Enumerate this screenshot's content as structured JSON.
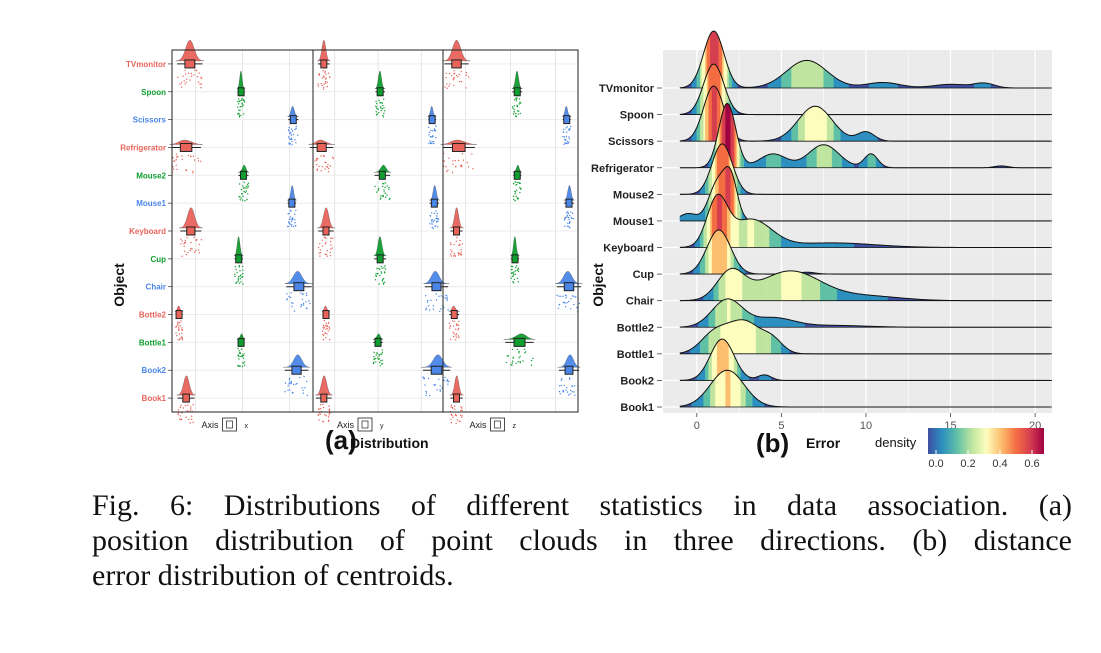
{
  "caption": {
    "lines": [
      "Fig. 6: Distributions of different statistics in data association. (a)",
      "position distribution of point clouds in three directions. (b) distance",
      "error distribution of centroids."
    ]
  },
  "chart_data": [
    {
      "type": "raincloud",
      "panel_label": "(a)",
      "xlabel": "Distribution",
      "ylabel": "Object",
      "grid": true,
      "facets": [
        {
          "title": "Axis",
          "axis": "x"
        },
        {
          "title": "Axis",
          "axis": "y"
        },
        {
          "title": "Axis",
          "axis": "z"
        }
      ],
      "categories": [
        "TVmonitor",
        "Spoon",
        "Scissors",
        "Refrigerator",
        "Mouse2",
        "Mouse1",
        "Keyboard",
        "Cup",
        "Chair",
        "Bottle2",
        "Bottle1",
        "Book2",
        "Book1"
      ],
      "category_colors": [
        "#e8645b",
        "#0e9e2e",
        "#4a86e8",
        "#e8645b",
        "#0e9e2e",
        "#4a86e8",
        "#e8645b",
        "#0e9e2e",
        "#4a86e8",
        "#e8645b",
        "#0e9e2e",
        "#4a86e8",
        "#e8645b"
      ],
      "column_index": [
        0,
        1,
        2,
        0,
        1,
        2,
        0,
        1,
        2,
        0,
        1,
        2,
        0
      ],
      "medians": {
        "x": [
          0.38,
          0.47,
          0.58,
          0.3,
          0.52,
          0.55,
          0.4,
          0.42,
          0.7,
          0.15,
          0.47,
          0.65,
          0.3
        ],
        "y": [
          0.25,
          0.55,
          0.75,
          0.2,
          0.6,
          0.8,
          0.3,
          0.55,
          0.85,
          0.3,
          0.5,
          0.85,
          0.25
        ],
        "z": [
          0.3,
          0.65,
          0.75,
          0.35,
          0.65,
          0.8,
          0.3,
          0.6,
          0.8,
          0.25,
          0.7,
          0.8,
          0.3
        ]
      },
      "spread": {
        "x": [
          0.3,
          0.05,
          0.12,
          0.35,
          0.12,
          0.1,
          0.25,
          0.1,
          0.3,
          0.08,
          0.08,
          0.28,
          0.2
        ],
        "y": [
          0.15,
          0.12,
          0.1,
          0.3,
          0.2,
          0.12,
          0.2,
          0.15,
          0.3,
          0.08,
          0.12,
          0.35,
          0.2
        ],
        "z": [
          0.3,
          0.12,
          0.1,
          0.4,
          0.1,
          0.12,
          0.15,
          0.1,
          0.3,
          0.12,
          0.35,
          0.25,
          0.15
        ]
      }
    },
    {
      "type": "ridgeline",
      "panel_label": "(b)",
      "xlabel": "Error",
      "ylabel": "Object",
      "xlim": [
        -2,
        21
      ],
      "xticks": [
        0,
        5,
        10,
        15,
        20
      ],
      "categories": [
        "TVmonitor",
        "Spoon",
        "Scissors",
        "Refrigerator",
        "Mouse2",
        "Mouse1",
        "Keyboard",
        "Cup",
        "Chair",
        "Bottle2",
        "Bottle1",
        "Book2",
        "Book1"
      ],
      "series": [
        {
          "name": "TVmonitor",
          "peaks": [
            [
              1.0,
              0.62,
              0.6
            ],
            [
              6.5,
              0.3,
              1.2
            ],
            [
              11,
              0.06,
              1.0
            ],
            [
              15,
              0.04,
              1.0
            ],
            [
              17,
              0.05,
              0.6
            ]
          ]
        },
        {
          "name": "Spoon",
          "peaks": [
            [
              1.0,
              0.55,
              0.6
            ]
          ]
        },
        {
          "name": "Scissors",
          "peaks": [
            [
              1.0,
              0.6,
              0.6
            ],
            [
              7.0,
              0.38,
              1.0
            ],
            [
              10.0,
              0.1,
              0.5
            ]
          ]
        },
        {
          "name": "Refrigerator",
          "peaks": [
            [
              1.8,
              0.7,
              0.5
            ],
            [
              4.5,
              0.15,
              0.8
            ],
            [
              7.5,
              0.25,
              0.9
            ],
            [
              10.3,
              0.15,
              0.4
            ],
            [
              18,
              0.02,
              0.4
            ]
          ]
        },
        {
          "name": "Mouse2",
          "peaks": [
            [
              1.5,
              0.55,
              0.6
            ]
          ]
        },
        {
          "name": "Mouse1",
          "peaks": [
            [
              -0.5,
              0.08,
              0.5
            ],
            [
              1.2,
              0.4,
              0.5
            ],
            [
              2.0,
              0.45,
              0.4
            ]
          ]
        },
        {
          "name": "Keyboard",
          "peaks": [
            [
              1.2,
              0.5,
              0.6
            ],
            [
              3.2,
              0.3,
              1.2
            ],
            [
              8,
              0.05,
              2.5
            ]
          ]
        },
        {
          "name": "Cup",
          "peaks": [
            [
              1.3,
              0.48,
              0.7
            ],
            [
              6.5,
              0.02,
              0.5
            ]
          ]
        },
        {
          "name": "Chair",
          "peaks": [
            [
              2.0,
              0.3,
              0.8
            ],
            [
              5.5,
              0.32,
              1.8
            ],
            [
              10,
              0.05,
              2.0
            ]
          ]
        },
        {
          "name": "Bottle2",
          "peaks": [
            [
              1.8,
              0.3,
              0.9
            ],
            [
              4.5,
              0.1,
              1.2
            ],
            [
              8,
              0.02,
              2
            ]
          ]
        },
        {
          "name": "Bottle1",
          "peaks": [
            [
              1.0,
              0.2,
              0.8
            ],
            [
              2.8,
              0.35,
              1.0
            ],
            [
              4.5,
              0.12,
              0.6
            ]
          ]
        },
        {
          "name": "Book2",
          "peaks": [
            [
              1.5,
              0.45,
              0.7
            ],
            [
              4.0,
              0.06,
              0.4
            ]
          ]
        },
        {
          "name": "Book1",
          "peaks": [
            [
              1.8,
              0.4,
              1.0
            ]
          ]
        }
      ],
      "legend": {
        "title": "density",
        "ticks": [
          "0.0",
          "0.2",
          "0.4",
          "0.6"
        ],
        "position": "bottom-right"
      },
      "colormap": [
        "#3d4fa3",
        "#2c8fbf",
        "#5fc0a5",
        "#bfe5a0",
        "#fdfebe",
        "#fdbf6f",
        "#f46d43",
        "#d53e4f",
        "#9e0142"
      ]
    }
  ]
}
